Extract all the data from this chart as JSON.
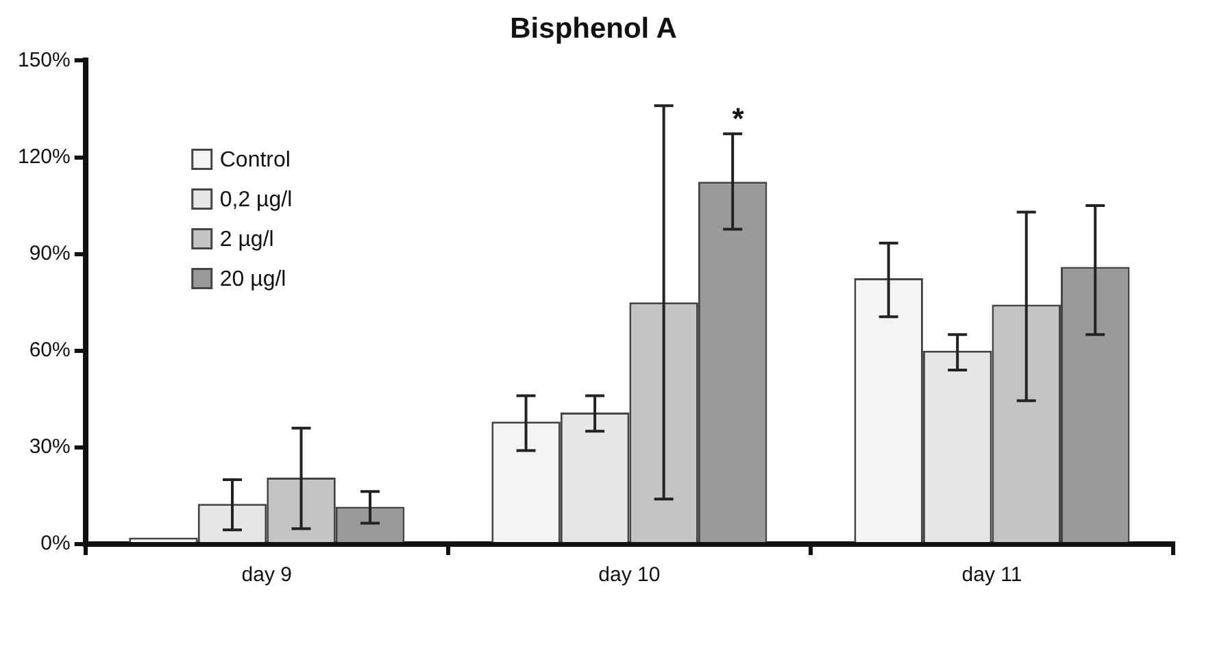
{
  "chart_data": {
    "type": "bar",
    "title": "Bisphenol A",
    "categories": [
      "day 9",
      "day 10",
      "day 11"
    ],
    "series": [
      {
        "name": "Control",
        "color": "#f4f4f4",
        "values": [
          2,
          38,
          82.5
        ],
        "errors": [
          null,
          [
            29,
            46
          ],
          [
            70.5,
            93.4
          ]
        ]
      },
      {
        "name": "0,2 µg/l",
        "color": "#e6e6e6",
        "values": [
          12.5,
          40.8,
          60
        ],
        "errors": [
          [
            4.4,
            20
          ],
          [
            35,
            46
          ],
          [
            54,
            65
          ]
        ]
      },
      {
        "name": "2 µg/l",
        "color": "#c4c4c4",
        "values": [
          20.6,
          75,
          74.3
        ],
        "errors": [
          [
            4.8,
            36
          ],
          [
            14,
            136
          ],
          [
            44.5,
            103
          ]
        ]
      },
      {
        "name": "20 µg/l",
        "color": "#9a9a9a",
        "values": [
          11.6,
          112.4,
          86
        ],
        "errors": [
          [
            6.5,
            16.3
          ],
          [
            97.7,
            127.3
          ],
          [
            65,
            105
          ]
        ]
      }
    ],
    "ylim": [
      0,
      150
    ],
    "yticks": [
      {
        "value": 0,
        "label": "0%"
      },
      {
        "value": 30,
        "label": "30%"
      },
      {
        "value": 60,
        "label": "60%"
      },
      {
        "value": 90,
        "label": "90%"
      },
      {
        "value": 120,
        "label": "120%"
      },
      {
        "value": 150,
        "label": "150%"
      }
    ],
    "annotations": [
      "*"
    ],
    "grid": false,
    "legend": "top left"
  }
}
